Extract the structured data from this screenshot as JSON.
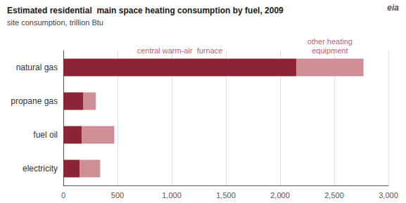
{
  "chart_data": {
    "type": "bar",
    "orientation": "horizontal",
    "stacked": true,
    "title": "Estimated residential  main space heating consumption by fuel, 2009",
    "subtitle": "site consumption, trillion Btu",
    "categories": [
      "electricity",
      "fuel oil",
      "propane gas",
      "natural gas"
    ],
    "series": [
      {
        "name": "central warm-air  furnace",
        "color": "#8B2535",
        "values": [
          150,
          170,
          185,
          2150
        ]
      },
      {
        "name": "other heating\nequipment",
        "color": "#CE8E96",
        "values": [
          190,
          300,
          115,
          620
        ]
      }
    ],
    "xlim": [
      0,
      3000
    ],
    "xticks": [
      0,
      500,
      {
        "value": 1000,
        "label": "1,000"
      },
      {
        "value": 1500,
        "label": "1,500"
      },
      {
        "value": 2000,
        "label": "2,000"
      },
      {
        "value": 2500,
        "label": "2,500"
      },
      {
        "value": 3000,
        "label": "3,000"
      }
    ],
    "grid": true,
    "annotations": [
      "eia"
    ]
  }
}
